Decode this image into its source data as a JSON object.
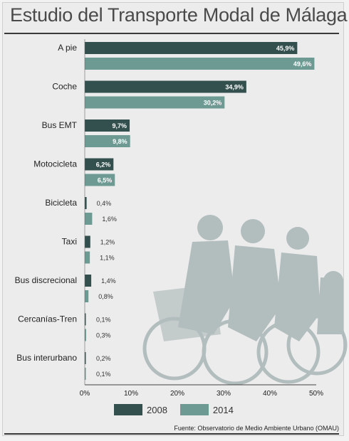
{
  "title": "Estudio del Transporte Modal de Málaga",
  "source": "Fuente: Observatorio de Medio Ambiente Urbano (OMAU)",
  "colors": {
    "s2008": "#33504e",
    "s2014": "#6e9a94",
    "illustration": "#a9b5b6"
  },
  "chart_data": {
    "type": "bar",
    "orientation": "horizontal",
    "title": "Estudio del Transporte Modal de Málaga",
    "categories": [
      "A pie",
      "Coche",
      "Bus EMT",
      "Motocicleta",
      "Bicicleta",
      "Taxi",
      "Bus discrecional",
      "Cercanías-Tren",
      "Bus interurbano"
    ],
    "series": [
      {
        "name": "2008",
        "values": [
          45.9,
          34.9,
          9.7,
          6.2,
          0.4,
          1.2,
          1.4,
          0.1,
          0.2
        ],
        "labels": [
          "45,9%",
          "34,9%",
          "9,7%",
          "6,2%",
          "0,4%",
          "1,2%",
          "1,4%",
          "0,1%",
          "0,2%"
        ]
      },
      {
        "name": "2014",
        "values": [
          49.6,
          30.2,
          9.8,
          6.5,
          1.6,
          1.1,
          0.8,
          0.3,
          0.1
        ],
        "labels": [
          "49,6%",
          "30,2%",
          "9,8%",
          "6,5%",
          "1,6%",
          "1,1%",
          "0,8%",
          "0,3%",
          "0,1%"
        ]
      }
    ],
    "xlim": [
      0,
      50
    ],
    "xticks": [
      0,
      10,
      20,
      30,
      40,
      50
    ],
    "xtick_labels": [
      "0%",
      "10%",
      "20%",
      "30%",
      "40%",
      "50%"
    ],
    "legend_position": "bottom",
    "grid": false
  }
}
